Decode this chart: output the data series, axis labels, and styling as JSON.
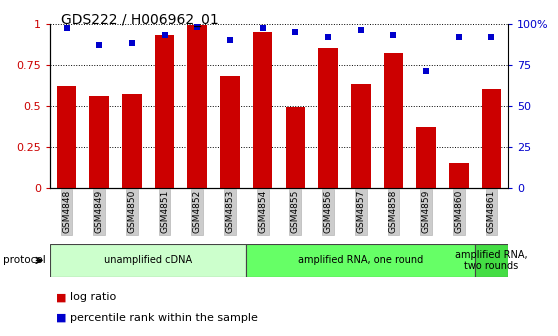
{
  "title": "GDS222 / H006962_01",
  "samples": [
    "GSM4848",
    "GSM4849",
    "GSM4850",
    "GSM4851",
    "GSM4852",
    "GSM4853",
    "GSM4854",
    "GSM4855",
    "GSM4856",
    "GSM4857",
    "GSM4858",
    "GSM4859",
    "GSM4860",
    "GSM4861"
  ],
  "log_ratio": [
    0.62,
    0.56,
    0.57,
    0.93,
    0.99,
    0.68,
    0.95,
    0.49,
    0.85,
    0.63,
    0.82,
    0.37,
    0.15,
    0.6
  ],
  "percentile_rank": [
    0.97,
    0.87,
    0.88,
    0.93,
    0.98,
    0.9,
    0.97,
    0.95,
    0.92,
    0.96,
    0.93,
    0.71,
    0.92,
    0.92
  ],
  "bar_color": "#CC0000",
  "dot_color": "#0000CC",
  "protocol_groups": [
    {
      "label": "unamplified cDNA",
      "start": 0,
      "end": 5,
      "color": "#CCFFCC"
    },
    {
      "label": "amplified RNA, one round",
      "start": 6,
      "end": 12,
      "color": "#66FF66"
    },
    {
      "label": "amplified RNA,\ntwo rounds",
      "start": 13,
      "end": 13,
      "color": "#44DD44"
    }
  ],
  "protocol_label": "protocol",
  "legend_log_ratio": "log ratio",
  "legend_percentile": "percentile rank within the sample",
  "ylim": [
    0,
    1.0
  ],
  "yticks_left": [
    0,
    0.25,
    0.5,
    0.75,
    1.0
  ],
  "ytick_labels_left": [
    "0",
    "0.25",
    "0.5",
    "0.75",
    "1"
  ],
  "yticks_right": [
    0,
    0.25,
    0.5,
    0.75,
    1.0
  ],
  "ytick_labels_right": [
    "0",
    "25",
    "50",
    "75",
    "100%"
  ],
  "background_color": "#ffffff"
}
